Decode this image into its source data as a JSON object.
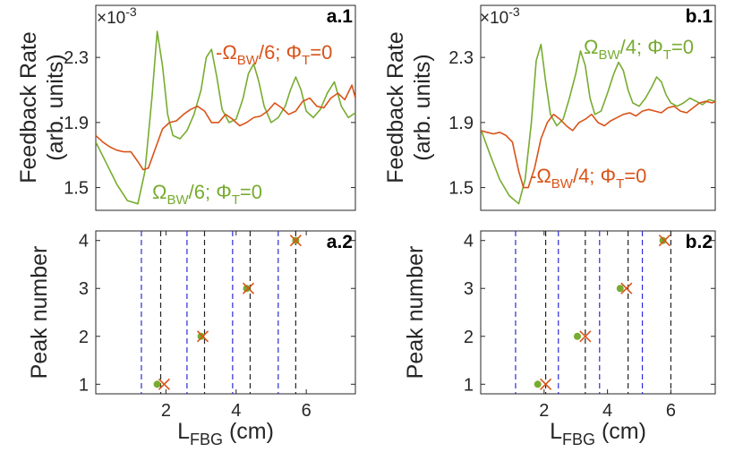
{
  "figure": {
    "colors": {
      "green": "#77ac30",
      "red": "#d95319",
      "black_line": "#222222",
      "blue_line": "#2b2bd9"
    }
  },
  "chart_data": [
    {
      "id": "a1",
      "type": "line",
      "panel_label": "a.1",
      "ylabel_line1": "Feedback Rate",
      "ylabel_line2": "(arb. units)",
      "multiplier_base": "×10",
      "multiplier_exp": "-3",
      "xlim": [
        0.0,
        7.4
      ],
      "ylim": [
        1.36,
        2.62
      ],
      "yticks": [
        1.5,
        1.9,
        2.3
      ],
      "ytick_labels": [
        "1.5",
        "1.9",
        "2.3"
      ],
      "annotations": [
        {
          "text_prefix": "-Ω",
          "sub": "BW",
          "text_mid": "/6; Φ",
          "sub2": "T",
          "text_suffix": "=0",
          "color": "red"
        },
        {
          "text_prefix": "Ω",
          "sub": "BW",
          "text_mid": "/6; Φ",
          "sub2": "T",
          "text_suffix": "=0",
          "color": "green"
        }
      ],
      "series": [
        {
          "name": "Ω_BW/6; Φ_T=0",
          "color": "green",
          "x": [
            0.0,
            0.3,
            0.6,
            0.9,
            1.2,
            1.4,
            1.6,
            1.75,
            1.9,
            2.05,
            2.2,
            2.4,
            2.6,
            2.8,
            3.0,
            3.15,
            3.3,
            3.45,
            3.6,
            3.8,
            4.0,
            4.2,
            4.35,
            4.5,
            4.65,
            4.8,
            5.0,
            5.2,
            5.4,
            5.55,
            5.7,
            5.85,
            6.0,
            6.2,
            6.4,
            6.6,
            6.8,
            7.0,
            7.2,
            7.4
          ],
          "y": [
            1.78,
            1.65,
            1.52,
            1.42,
            1.4,
            1.6,
            2.05,
            2.46,
            2.25,
            1.95,
            1.82,
            1.8,
            1.85,
            1.95,
            2.1,
            2.3,
            2.35,
            2.18,
            1.98,
            1.9,
            1.92,
            2.05,
            2.2,
            2.26,
            2.15,
            2.0,
            1.9,
            1.93,
            2.0,
            2.1,
            2.18,
            2.1,
            1.97,
            1.93,
            1.98,
            2.08,
            2.15,
            2.0,
            1.93,
            1.96
          ]
        },
        {
          "name": "-Ω_BW/6; Φ_T=0",
          "color": "red",
          "x": [
            0.0,
            0.2,
            0.4,
            0.6,
            0.8,
            1.0,
            1.2,
            1.35,
            1.5,
            1.7,
            1.9,
            2.1,
            2.3,
            2.5,
            2.7,
            2.9,
            3.1,
            3.3,
            3.5,
            3.7,
            3.9,
            4.1,
            4.3,
            4.5,
            4.7,
            4.9,
            5.1,
            5.3,
            5.5,
            5.7,
            5.9,
            6.1,
            6.3,
            6.5,
            6.7,
            6.9,
            7.1,
            7.3,
            7.4
          ],
          "y": [
            1.82,
            1.78,
            1.75,
            1.73,
            1.72,
            1.72,
            1.66,
            1.61,
            1.62,
            1.74,
            1.86,
            1.9,
            1.91,
            1.95,
            1.98,
            2.0,
            1.97,
            1.9,
            1.9,
            1.95,
            1.92,
            1.88,
            1.9,
            1.93,
            1.94,
            1.97,
            2.02,
            1.99,
            1.95,
            1.97,
            2.03,
            2.05,
            2.0,
            1.99,
            2.05,
            2.08,
            2.04,
            2.13,
            2.05
          ]
        }
      ]
    },
    {
      "id": "b1",
      "type": "line",
      "panel_label": "b.1",
      "ylabel_line1": "Feedback Rate",
      "ylabel_line2": "(arb. units)",
      "multiplier_base": "×10",
      "multiplier_exp": "-3",
      "xlim": [
        0.0,
        7.4
      ],
      "ylim": [
        1.36,
        2.62
      ],
      "yticks": [
        1.5,
        1.9,
        2.3
      ],
      "ytick_labels": [
        "1.5",
        "1.9",
        "2.3"
      ],
      "annotations": [
        {
          "text_prefix": "Ω",
          "sub": "BW",
          "text_mid": "/4; Φ",
          "sub2": "T",
          "text_suffix": "=0",
          "color": "green"
        },
        {
          "text_prefix": "-Ω",
          "sub": "BW",
          "text_mid": "/4; Φ",
          "sub2": "T",
          "text_suffix": "=0",
          "color": "red"
        }
      ],
      "series": [
        {
          "name": "Ω_BW/4; Φ_T=0",
          "color": "green",
          "x": [
            0.0,
            0.3,
            0.6,
            0.9,
            1.2,
            1.4,
            1.6,
            1.75,
            1.9,
            2.05,
            2.2,
            2.4,
            2.6,
            2.8,
            3.0,
            3.15,
            3.3,
            3.45,
            3.6,
            3.8,
            4.0,
            4.2,
            4.35,
            4.5,
            4.65,
            4.8,
            5.0,
            5.2,
            5.4,
            5.55,
            5.7,
            5.85,
            6.0,
            6.2,
            6.4,
            6.6,
            6.8,
            7.0,
            7.2,
            7.4
          ],
          "y": [
            1.86,
            1.7,
            1.55,
            1.45,
            1.4,
            1.55,
            1.9,
            2.28,
            2.38,
            2.15,
            1.95,
            1.88,
            1.92,
            2.05,
            2.2,
            2.34,
            2.25,
            2.05,
            1.95,
            1.97,
            2.08,
            2.2,
            2.27,
            2.22,
            2.1,
            2.02,
            2.0,
            2.05,
            2.12,
            2.18,
            2.15,
            2.07,
            2.02,
            2.0,
            2.02,
            2.05,
            2.03,
            2.01,
            2.04,
            2.03
          ]
        },
        {
          "name": "-Ω_BW/4; Φ_T=0",
          "color": "red",
          "x": [
            0.0,
            0.2,
            0.4,
            0.6,
            0.8,
            1.0,
            1.2,
            1.35,
            1.5,
            1.7,
            1.9,
            2.1,
            2.3,
            2.5,
            2.7,
            2.9,
            3.1,
            3.3,
            3.5,
            3.7,
            3.9,
            4.1,
            4.3,
            4.5,
            4.7,
            4.9,
            5.1,
            5.3,
            5.5,
            5.7,
            5.9,
            6.1,
            6.3,
            6.5,
            6.7,
            6.9,
            7.1,
            7.3,
            7.4
          ],
          "y": [
            1.85,
            1.84,
            1.83,
            1.84,
            1.82,
            1.78,
            1.6,
            1.5,
            1.5,
            1.62,
            1.8,
            1.9,
            1.95,
            1.92,
            1.88,
            1.85,
            1.9,
            1.92,
            1.95,
            1.9,
            1.88,
            1.91,
            1.93,
            1.95,
            1.96,
            1.94,
            1.97,
            1.98,
            1.97,
            1.96,
            1.99,
            2.0,
            1.97,
            1.96,
            1.99,
            2.02,
            2.03,
            2.02,
            2.03
          ]
        }
      ]
    },
    {
      "id": "a2",
      "type": "scatter",
      "panel_label": "a.2",
      "ylabel": "Peak number",
      "xlabel_main": "L",
      "xlabel_sub": "FBG",
      "xlabel_unit": " (cm)",
      "xlim": [
        0.0,
        7.4
      ],
      "ylim": [
        0.8,
        4.2
      ],
      "xticks": [
        2,
        4,
        6
      ],
      "xtick_labels": [
        "2",
        "4",
        "6"
      ],
      "yticks": [
        1,
        2,
        3,
        4
      ],
      "ytick_labels": [
        "1",
        "2",
        "3",
        "4"
      ],
      "black_dashed_x": [
        1.85,
        3.1,
        4.4,
        5.7
      ],
      "blue_dashed_x": [
        1.3,
        2.6,
        3.9,
        5.2
      ],
      "dots": {
        "x": [
          1.75,
          3.0,
          4.3,
          5.7
        ],
        "y": [
          1,
          2,
          3,
          4
        ],
        "color": "green"
      },
      "crosses": {
        "x": [
          1.95,
          3.05,
          4.35,
          5.7
        ],
        "y": [
          1,
          2,
          3,
          4
        ],
        "color": "red"
      }
    },
    {
      "id": "b2",
      "type": "scatter",
      "panel_label": "b.2",
      "ylabel": "Peak number",
      "xlabel_main": "L",
      "xlabel_sub": "FBG",
      "xlabel_unit": " (cm)",
      "xlim": [
        0.0,
        7.4
      ],
      "ylim": [
        0.8,
        4.2
      ],
      "xticks": [
        2,
        4,
        6
      ],
      "xtick_labels": [
        "2",
        "4",
        "6"
      ],
      "yticks": [
        1,
        2,
        3,
        4
      ],
      "ytick_labels": [
        "1",
        "2",
        "3",
        "4"
      ],
      "black_dashed_x": [
        2.05,
        3.3,
        4.65,
        6.0
      ],
      "blue_dashed_x": [
        1.1,
        2.45,
        3.75,
        5.1
      ],
      "dots": {
        "x": [
          1.8,
          3.05,
          4.4,
          5.75
        ],
        "y": [
          1,
          2,
          3,
          4
        ],
        "color": "green"
      },
      "crosses": {
        "x": [
          2.05,
          3.3,
          4.6,
          5.8
        ],
        "y": [
          1,
          2,
          3,
          4
        ],
        "color": "red"
      }
    }
  ]
}
